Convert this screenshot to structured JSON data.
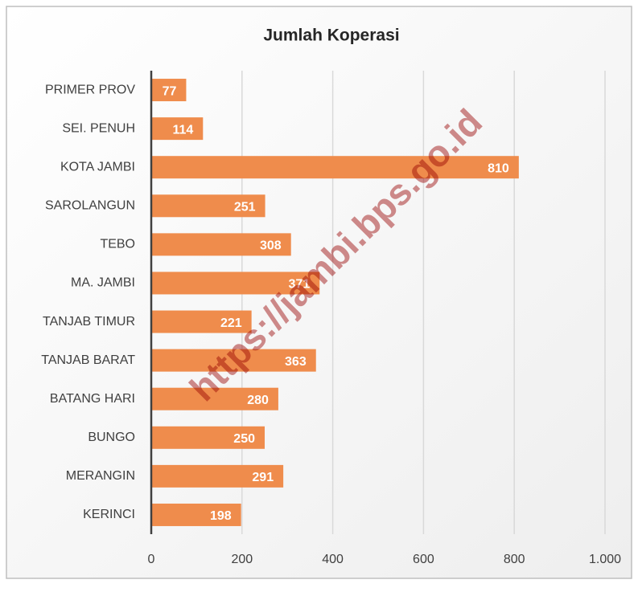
{
  "chart_data": {
    "type": "barh",
    "title": "Jumlah Koperasi",
    "categories": [
      "PRIMER PROV",
      "SEI. PENUH",
      "KOTA JAMBI",
      "SAROLANGUN",
      "TEBO",
      "MA. JAMBI",
      "TANJAB TIMUR",
      "TANJAB BARAT",
      "BATANG HARI",
      "BUNGO",
      "MERANGIN",
      "KERINCI"
    ],
    "values": [
      77,
      114,
      810,
      251,
      308,
      371,
      221,
      363,
      280,
      250,
      291,
      198
    ],
    "color": "#ef8c4c",
    "xlim": [
      0,
      1000
    ],
    "xticks": [
      0,
      200,
      400,
      600,
      800,
      {
        "value": 1000,
        "label": "1.000"
      }
    ],
    "grid": true,
    "watermark": "https://jambi.bps.go.id"
  }
}
